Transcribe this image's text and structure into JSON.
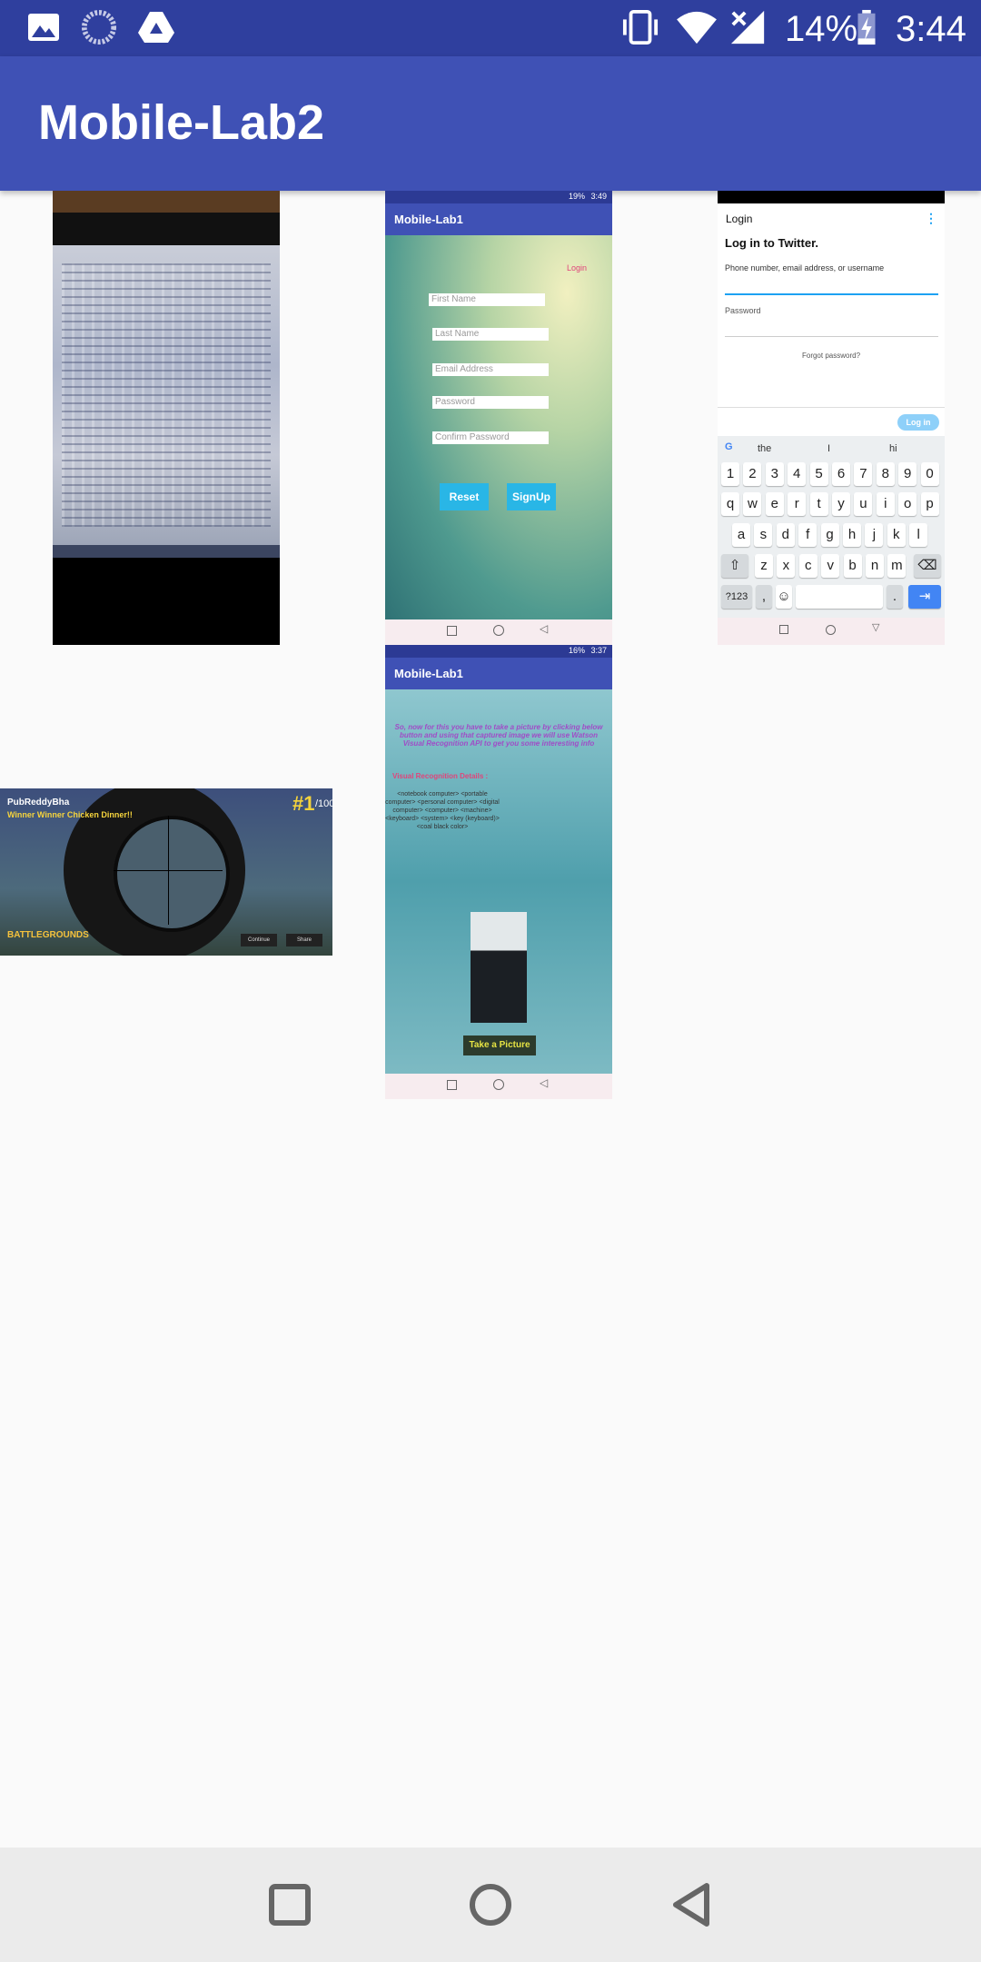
{
  "status_bar": {
    "battery_percent": "14%",
    "time": "3:44",
    "left_icons": [
      "gallery-icon",
      "sync-icon",
      "drive-icon"
    ],
    "right_icons": [
      "vibrate-icon",
      "wifi-icon",
      "no-signal-icon",
      "battery-charging-icon"
    ]
  },
  "app_bar": {
    "title": "Mobile-Lab2",
    "color": "#3f51b5",
    "status_color": "#2f3f9e"
  },
  "gallery": {
    "signup_shot": {
      "status_time": "3:49",
      "status_battery": "19%",
      "app_title": "Mobile-Lab1",
      "login_link": "Login",
      "fields": [
        "First Name",
        "Last Name",
        "Email Address",
        "Password",
        "Confirm Password"
      ],
      "reset_label": "Reset",
      "signup_label": "SignUp"
    },
    "twitter_shot": {
      "header": "Login",
      "title": "Log in to Twitter.",
      "username_label": "Phone number, email address, or username",
      "password_label": "Password",
      "forgot_label": "Forgot password?",
      "login_button": "Log in",
      "suggestions": [
        "the",
        "I",
        "hi"
      ],
      "keys_row1": [
        "1",
        "2",
        "3",
        "4",
        "5",
        "6",
        "7",
        "8",
        "9",
        "0"
      ],
      "keys_row2": [
        "q",
        "w",
        "e",
        "r",
        "t",
        "y",
        "u",
        "i",
        "o",
        "p"
      ],
      "keys_row3": [
        "a",
        "s",
        "d",
        "f",
        "g",
        "h",
        "j",
        "k",
        "l"
      ],
      "keys_row4": [
        "z",
        "x",
        "c",
        "v",
        "b",
        "n",
        "m"
      ],
      "symbols_key": "?123",
      "comma_key": ",",
      "period_key": "."
    },
    "game_shot": {
      "player": "PubReddyBha",
      "headline": "Winner Winner Chicken Dinner!!",
      "rank": "#1",
      "rank_total": "/100",
      "logo_text": "BATTLEGROUNDS",
      "continue_label": "Continue",
      "share_label": "Share"
    },
    "vision_shot": {
      "status_time": "3:37",
      "status_battery": "16%",
      "app_title": "Mobile-Lab1",
      "intro": "So, now for this you have to take a picture by clicking below button and using that captured image we will use Watson Visual Recognition API to get you some interesting info",
      "details_heading": "Visual Recognition Details :",
      "details_text": "<notebook computer> <portable computer> <personal computer> <digital computer> <computer> <machine> <keyboard> <system> <key (keyboard)> <coal black color>",
      "button_label": "Take a Picture"
    }
  },
  "nav_bar": {
    "icons": [
      "recents-icon",
      "home-icon",
      "back-icon"
    ]
  }
}
